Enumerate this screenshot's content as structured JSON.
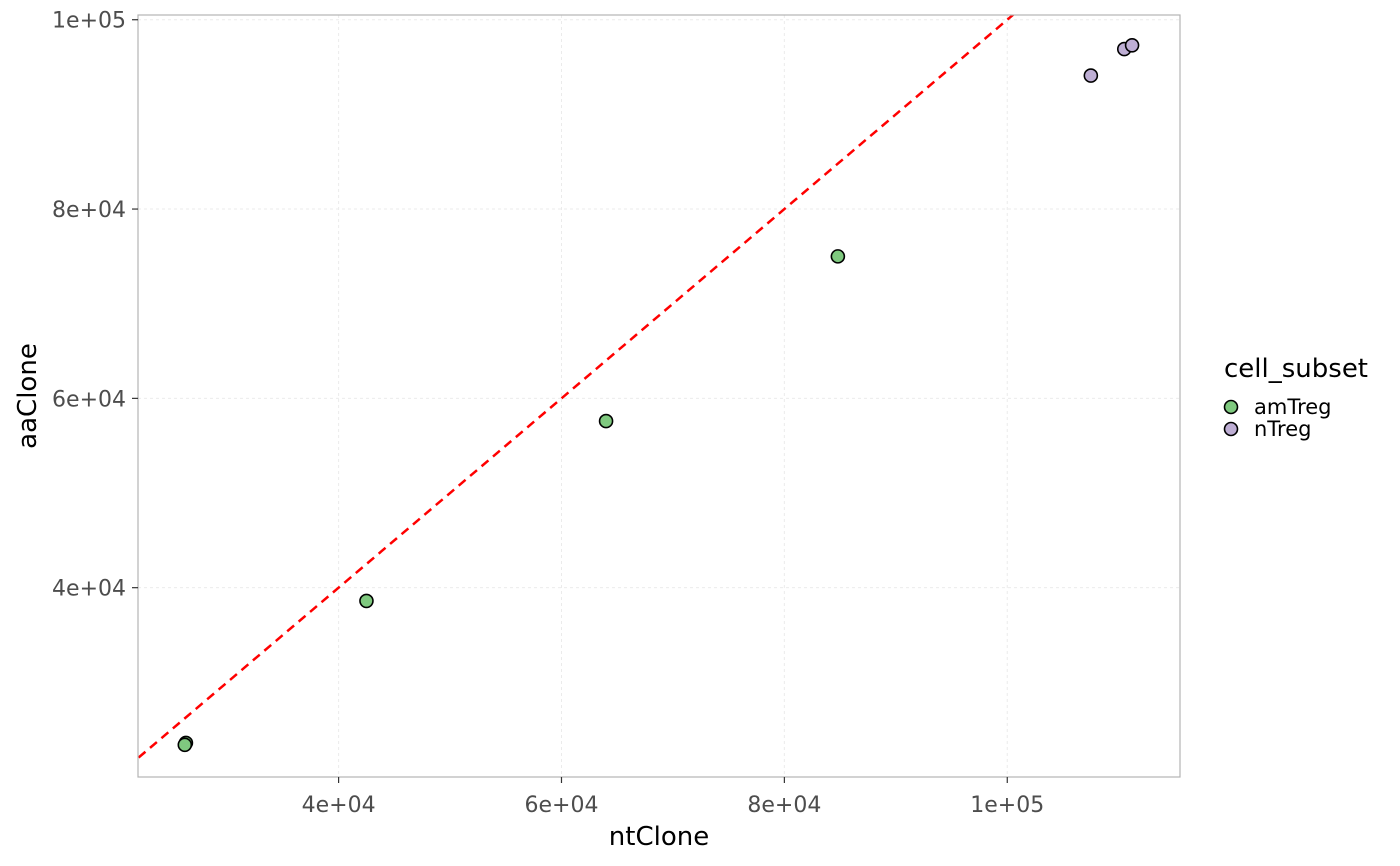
{
  "chart_data": {
    "type": "scatter",
    "xlabel": "ntClone",
    "ylabel": "aaClone",
    "xlim": [
      22000,
      115500
    ],
    "ylim": [
      20000,
      100500
    ],
    "x_ticks": [
      40000,
      60000,
      80000,
      100000
    ],
    "x_tick_labels": [
      "4e+04",
      "6e+04",
      "8e+04",
      "1e+05"
    ],
    "y_ticks": [
      40000,
      60000,
      80000,
      100000
    ],
    "y_tick_labels": [
      "4e+04",
      "6e+04",
      "8e+04",
      "1e+05"
    ],
    "grid": true,
    "reference_line": {
      "type": "identity",
      "slope": 1,
      "intercept": 0,
      "style": "dashed",
      "color": "#ff0000"
    },
    "legend": {
      "title": "cell_subset",
      "placement": "right",
      "entries": [
        {
          "label": "amTreg",
          "color": "#7fc97f"
        },
        {
          "label": "nTreg",
          "color": "#beaed4"
        }
      ]
    },
    "series": [
      {
        "name": "amTreg",
        "color": "#7fc97f",
        "points": [
          {
            "x": 26300,
            "y": 23600
          },
          {
            "x": 26200,
            "y": 23400
          },
          {
            "x": 42500,
            "y": 38600
          },
          {
            "x": 64000,
            "y": 57600
          },
          {
            "x": 84800,
            "y": 75000
          }
        ]
      },
      {
        "name": "nTreg",
        "color": "#beaed4",
        "points": [
          {
            "x": 107500,
            "y": 94100
          },
          {
            "x": 110500,
            "y": 96900
          },
          {
            "x": 111200,
            "y": 97300
          }
        ]
      }
    ]
  }
}
